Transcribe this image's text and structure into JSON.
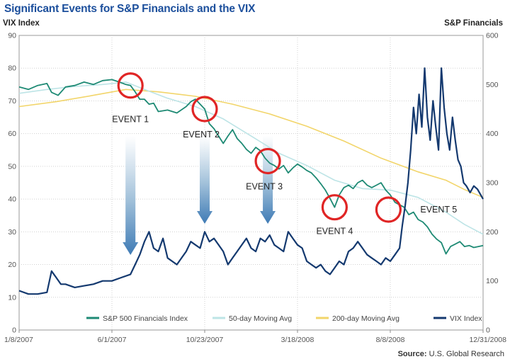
{
  "chart_data": {
    "type": "line",
    "title": "Significant Events for S&P Financials and the VIX",
    "left_axis": {
      "label": "VIX Index",
      "ylim": [
        0,
        90
      ],
      "ticks": [
        0,
        10,
        20,
        30,
        40,
        50,
        60,
        70,
        80,
        90
      ]
    },
    "right_axis": {
      "label": "S&P Financials",
      "ylim": [
        0,
        600
      ],
      "ticks": [
        0,
        100,
        200,
        300,
        400,
        500,
        600
      ]
    },
    "x_labels": [
      "1/8/2007",
      "6/1/2007",
      "10/23/2007",
      "3/18/2008",
      "8/8/2008",
      "12/31/2008"
    ],
    "x_range": [
      0,
      500
    ],
    "series": [
      {
        "name": "S&P 500 Financials Index",
        "axis": "right",
        "color": "#1e8a74",
        "points": [
          [
            0,
            495
          ],
          [
            10,
            490
          ],
          [
            20,
            498
          ],
          [
            30,
            502
          ],
          [
            35,
            484
          ],
          [
            42,
            478
          ],
          [
            50,
            495
          ],
          [
            60,
            498
          ],
          [
            70,
            505
          ],
          [
            80,
            500
          ],
          [
            90,
            508
          ],
          [
            100,
            510
          ],
          [
            108,
            505
          ],
          [
            115,
            500
          ],
          [
            120,
            498
          ],
          [
            125,
            485
          ],
          [
            130,
            470
          ],
          [
            135,
            470
          ],
          [
            140,
            460
          ],
          [
            145,
            462
          ],
          [
            150,
            445
          ],
          [
            160,
            448
          ],
          [
            170,
            442
          ],
          [
            180,
            455
          ],
          [
            185,
            465
          ],
          [
            190,
            470
          ],
          [
            200,
            450
          ],
          [
            205,
            420
          ],
          [
            210,
            410
          ],
          [
            215,
            395
          ],
          [
            220,
            380
          ],
          [
            225,
            395
          ],
          [
            230,
            408
          ],
          [
            235,
            390
          ],
          [
            240,
            380
          ],
          [
            245,
            368
          ],
          [
            250,
            360
          ],
          [
            255,
            372
          ],
          [
            260,
            365
          ],
          [
            265,
            350
          ],
          [
            270,
            340
          ],
          [
            275,
            335
          ],
          [
            280,
            328
          ],
          [
            285,
            335
          ],
          [
            290,
            320
          ],
          [
            295,
            330
          ],
          [
            300,
            338
          ],
          [
            305,
            332
          ],
          [
            310,
            325
          ],
          [
            315,
            320
          ],
          [
            320,
            310
          ],
          [
            325,
            298
          ],
          [
            330,
            285
          ],
          [
            335,
            268
          ],
          [
            340,
            250
          ],
          [
            345,
            275
          ],
          [
            350,
            290
          ],
          [
            355,
            295
          ],
          [
            360,
            288
          ],
          [
            365,
            300
          ],
          [
            370,
            305
          ],
          [
            375,
            295
          ],
          [
            380,
            290
          ],
          [
            385,
            295
          ],
          [
            390,
            300
          ],
          [
            395,
            285
          ],
          [
            400,
            275
          ],
          [
            405,
            260
          ],
          [
            410,
            255
          ],
          [
            415,
            250
          ],
          [
            420,
            235
          ],
          [
            425,
            240
          ],
          [
            430,
            225
          ],
          [
            435,
            220
          ],
          [
            440,
            210
          ],
          [
            445,
            195
          ],
          [
            450,
            185
          ],
          [
            455,
            178
          ],
          [
            460,
            155
          ],
          [
            465,
            170
          ],
          [
            470,
            175
          ],
          [
            475,
            180
          ],
          [
            480,
            170
          ],
          [
            485,
            172
          ],
          [
            490,
            168
          ],
          [
            495,
            170
          ],
          [
            500,
            172
          ]
        ]
      },
      {
        "name": "50-day Moving Avg",
        "axis": "right",
        "color": "#bde4e6",
        "points": [
          [
            0,
            482
          ],
          [
            30,
            490
          ],
          [
            60,
            496
          ],
          [
            90,
            500
          ],
          [
            115,
            505
          ],
          [
            135,
            490
          ],
          [
            160,
            472
          ],
          [
            190,
            455
          ],
          [
            220,
            430
          ],
          [
            250,
            395
          ],
          [
            280,
            360
          ],
          [
            310,
            335
          ],
          [
            340,
            305
          ],
          [
            370,
            288
          ],
          [
            400,
            285
          ],
          [
            430,
            270
          ],
          [
            460,
            240
          ],
          [
            480,
            215
          ],
          [
            500,
            195
          ]
        ]
      },
      {
        "name": "200-day Moving Avg",
        "axis": "right",
        "color": "#f2d56a",
        "points": [
          [
            0,
            455
          ],
          [
            40,
            465
          ],
          [
            80,
            478
          ],
          [
            115,
            490
          ],
          [
            150,
            485
          ],
          [
            190,
            476
          ],
          [
            230,
            460
          ],
          [
            270,
            440
          ],
          [
            310,
            415
          ],
          [
            350,
            385
          ],
          [
            390,
            350
          ],
          [
            430,
            322
          ],
          [
            460,
            305
          ],
          [
            480,
            286
          ],
          [
            500,
            270
          ]
        ]
      },
      {
        "name": "VIX Index",
        "axis": "left",
        "color": "#14396f",
        "points": [
          [
            0,
            12
          ],
          [
            10,
            11
          ],
          [
            20,
            11
          ],
          [
            30,
            11.5
          ],
          [
            35,
            18
          ],
          [
            40,
            16
          ],
          [
            45,
            14
          ],
          [
            50,
            14
          ],
          [
            60,
            13
          ],
          [
            70,
            13.5
          ],
          [
            80,
            14
          ],
          [
            90,
            15
          ],
          [
            100,
            15
          ],
          [
            110,
            16
          ],
          [
            120,
            17
          ],
          [
            125,
            20
          ],
          [
            130,
            23
          ],
          [
            135,
            27
          ],
          [
            140,
            30
          ],
          [
            145,
            25
          ],
          [
            150,
            24
          ],
          [
            155,
            28
          ],
          [
            160,
            22
          ],
          [
            170,
            20
          ],
          [
            180,
            24
          ],
          [
            185,
            27
          ],
          [
            190,
            26
          ],
          [
            195,
            25
          ],
          [
            200,
            30
          ],
          [
            205,
            27
          ],
          [
            210,
            28
          ],
          [
            215,
            26
          ],
          [
            220,
            24
          ],
          [
            225,
            20
          ],
          [
            230,
            22
          ],
          [
            235,
            24
          ],
          [
            240,
            26
          ],
          [
            245,
            28
          ],
          [
            250,
            25
          ],
          [
            255,
            24
          ],
          [
            260,
            28
          ],
          [
            265,
            27
          ],
          [
            270,
            29
          ],
          [
            275,
            26
          ],
          [
            280,
            25
          ],
          [
            285,
            24
          ],
          [
            290,
            30
          ],
          [
            295,
            28
          ],
          [
            300,
            26
          ],
          [
            305,
            25
          ],
          [
            310,
            21
          ],
          [
            315,
            20
          ],
          [
            320,
            19
          ],
          [
            325,
            20
          ],
          [
            330,
            18
          ],
          [
            335,
            17
          ],
          [
            340,
            19
          ],
          [
            345,
            21
          ],
          [
            350,
            20
          ],
          [
            355,
            24
          ],
          [
            360,
            25
          ],
          [
            365,
            27
          ],
          [
            370,
            25
          ],
          [
            375,
            23
          ],
          [
            380,
            22
          ],
          [
            385,
            21
          ],
          [
            390,
            20
          ],
          [
            395,
            22
          ],
          [
            400,
            21
          ],
          [
            405,
            23
          ],
          [
            410,
            25
          ],
          [
            413,
            32
          ],
          [
            416,
            38
          ],
          [
            419,
            45
          ],
          [
            422,
            55
          ],
          [
            425,
            68
          ],
          [
            428,
            60
          ],
          [
            431,
            72
          ],
          [
            434,
            62
          ],
          [
            437,
            80
          ],
          [
            440,
            65
          ],
          [
            443,
            58
          ],
          [
            446,
            70
          ],
          [
            449,
            62
          ],
          [
            452,
            55
          ],
          [
            455,
            80
          ],
          [
            458,
            68
          ],
          [
            461,
            60
          ],
          [
            464,
            55
          ],
          [
            467,
            65
          ],
          [
            470,
            58
          ],
          [
            473,
            52
          ],
          [
            476,
            50
          ],
          [
            479,
            45
          ],
          [
            482,
            44
          ],
          [
            486,
            42
          ],
          [
            490,
            44
          ],
          [
            494,
            43
          ],
          [
            500,
            40
          ]
        ]
      }
    ],
    "events": [
      {
        "label": "EVENT 1",
        "x": 120
      },
      {
        "label": "EVENT 2",
        "x": 200
      },
      {
        "label": "EVENT 3",
        "x": 268
      },
      {
        "label": "EVENT 4",
        "x": 340
      },
      {
        "label": "EVENT 5",
        "x": 398
      }
    ],
    "source": {
      "label": "Source:",
      "text": "U.S. Global Research"
    }
  }
}
